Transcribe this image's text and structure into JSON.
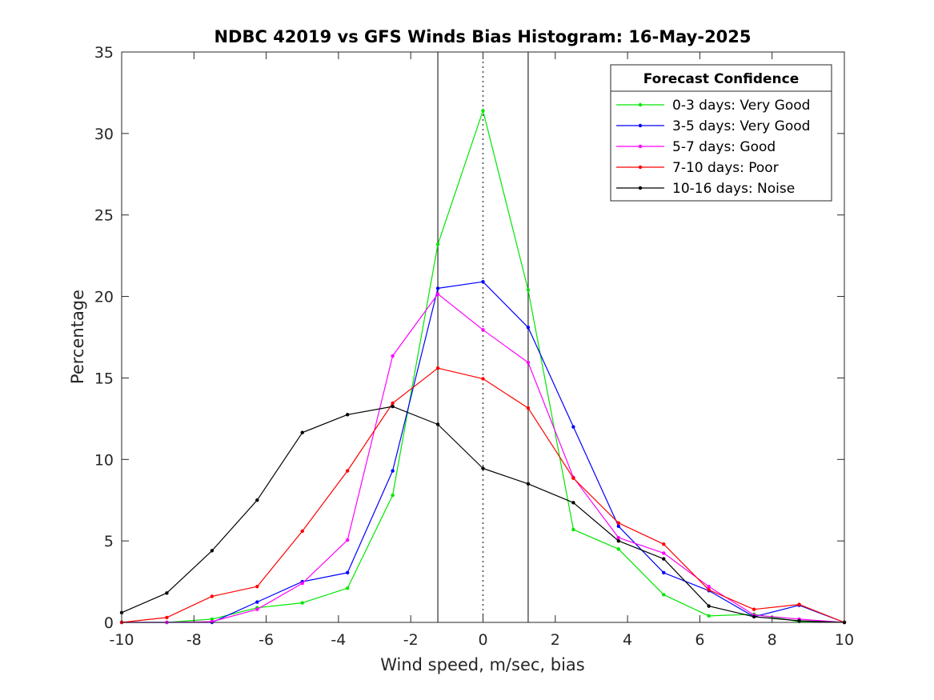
{
  "chart_data": {
    "type": "line",
    "title": "NDBC 42019 vs GFS Winds Bias Histogram: 16-May-2025",
    "xlabel": "Wind speed, m/sec, bias",
    "ylabel": "Percentage",
    "xlim": [
      -10,
      10
    ],
    "ylim": [
      0,
      35
    ],
    "xticks": [
      -10,
      -8,
      -6,
      -4,
      -2,
      0,
      2,
      4,
      6,
      8,
      10
    ],
    "yticks": [
      0,
      5,
      10,
      15,
      20,
      25,
      30,
      35
    ],
    "grid": false,
    "vlines_solid": [
      -1.25,
      1.25
    ],
    "vline_dotted": 0,
    "legend": {
      "title": "Forecast Confidence",
      "position": "top-right"
    },
    "x": [
      -10,
      -8.75,
      -7.5,
      -6.25,
      -5,
      -3.75,
      -2.5,
      -1.25,
      0,
      1.25,
      2.5,
      3.75,
      5,
      6.25,
      7.5,
      8.75,
      10
    ],
    "series": [
      {
        "name": "0-3 days: Very Good",
        "color": "#00e600",
        "values": [
          0,
          0,
          0.2,
          0.9,
          1.2,
          2.1,
          7.8,
          23.2,
          31.4,
          20.4,
          5.7,
          4.5,
          1.7,
          0.4,
          0.5,
          0.05,
          0
        ]
      },
      {
        "name": "3-5 days: Very Good",
        "color": "#0000ff",
        "values": [
          0,
          0,
          0,
          1.25,
          2.5,
          3.05,
          9.3,
          20.5,
          20.9,
          18.1,
          12.0,
          5.9,
          3.05,
          1.95,
          0.35,
          1.05,
          0
        ]
      },
      {
        "name": "5-7 days: Good",
        "color": "#ff00ff",
        "values": [
          0,
          0,
          0.05,
          0.8,
          2.4,
          5.05,
          16.35,
          20.15,
          17.95,
          15.95,
          8.9,
          5.2,
          4.25,
          2.2,
          0.45,
          0.2,
          0
        ]
      },
      {
        "name": "7-10 days: Poor",
        "color": "#ff0000",
        "values": [
          0,
          0.3,
          1.6,
          2.2,
          5.6,
          9.3,
          13.45,
          15.6,
          14.95,
          13.15,
          8.85,
          6.1,
          4.8,
          2.0,
          0.8,
          1.1,
          0
        ]
      },
      {
        "name": "10-16 days: Noise",
        "color": "#000000",
        "values": [
          0.6,
          1.8,
          4.4,
          7.5,
          11.65,
          12.75,
          13.25,
          12.15,
          9.45,
          8.5,
          7.35,
          5.0,
          3.9,
          1.0,
          0.35,
          0.1,
          0
        ]
      }
    ]
  }
}
